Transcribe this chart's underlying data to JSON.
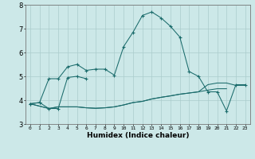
{
  "title": "",
  "xlabel": "Humidex (Indice chaleur)",
  "bg_color": "#cce8e8",
  "line_color": "#1a6b6b",
  "grid_color": "#aacccc",
  "xlim": [
    -0.5,
    23.5
  ],
  "ylim": [
    3.0,
    8.0
  ],
  "xticks": [
    0,
    1,
    2,
    3,
    4,
    5,
    6,
    7,
    8,
    9,
    10,
    11,
    12,
    13,
    14,
    15,
    16,
    17,
    18,
    19,
    20,
    21,
    22,
    23
  ],
  "yticks": [
    3,
    4,
    5,
    6,
    7,
    8
  ],
  "series": [
    {
      "x": [
        0,
        1,
        2,
        3,
        4,
        5,
        6,
        7,
        8,
        9,
        10,
        11,
        12,
        13,
        14,
        15,
        16,
        17,
        18,
        19,
        20,
        21,
        22,
        23
      ],
      "y": [
        3.85,
        3.9,
        4.9,
        4.9,
        5.4,
        5.5,
        5.25,
        5.3,
        5.3,
        5.05,
        6.25,
        6.85,
        7.55,
        7.7,
        7.45,
        7.1,
        6.65,
        5.2,
        5.0,
        4.35,
        4.35,
        3.55,
        4.65,
        4.65
      ],
      "marker": "+"
    },
    {
      "x": [
        0,
        1,
        2,
        3,
        4,
        5,
        6
      ],
      "y": [
        3.85,
        3.9,
        3.65,
        3.65,
        4.95,
        5.0,
        4.9
      ],
      "marker": "+"
    },
    {
      "x": [
        0,
        2,
        3,
        4,
        5,
        6,
        7,
        8,
        9,
        10,
        11,
        12,
        13,
        14,
        15,
        16,
        17,
        18,
        19,
        20,
        21
      ],
      "y": [
        3.85,
        3.65,
        3.72,
        3.72,
        3.72,
        3.68,
        3.66,
        3.68,
        3.72,
        3.8,
        3.9,
        3.95,
        4.05,
        4.12,
        4.18,
        4.25,
        4.3,
        4.35,
        4.42,
        4.48,
        4.48
      ],
      "marker": null
    },
    {
      "x": [
        0,
        2,
        3,
        4,
        5,
        6,
        7,
        8,
        9,
        10,
        11,
        12,
        13,
        14,
        15,
        16,
        17,
        18,
        19,
        20,
        21,
        22,
        23
      ],
      "y": [
        3.85,
        3.65,
        3.72,
        3.72,
        3.72,
        3.68,
        3.66,
        3.68,
        3.72,
        3.8,
        3.9,
        3.95,
        4.05,
        4.12,
        4.18,
        4.25,
        4.3,
        4.35,
        4.65,
        4.72,
        4.72,
        4.62,
        4.62
      ],
      "marker": null
    }
  ]
}
